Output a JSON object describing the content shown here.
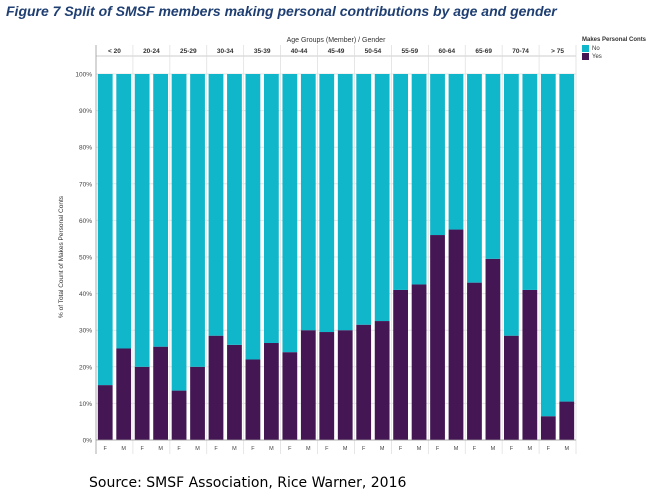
{
  "title": "Figure 7 Split of SMSF members making personal contributions by age and gender",
  "source": "Source: SMSF Association, Rice Warner, 2016",
  "colors": {
    "no": "#10b6c9",
    "yes": "#441654"
  },
  "chart_data": {
    "type": "bar",
    "stacked": true,
    "percent": true,
    "header_label": "Age Groups (Member)  /  Gender",
    "ylabel": "% of Total Count of Makes Personal Conts",
    "yticks": [
      "0%",
      "10%",
      "20%",
      "30%",
      "40%",
      "50%",
      "60%",
      "70%",
      "80%",
      "90%",
      "100%"
    ],
    "ylim": [
      0,
      100
    ],
    "legend": {
      "title": "Makes Personal Conts",
      "items": [
        "No",
        "Yes"
      ],
      "position": "top-right"
    },
    "groups": [
      "< 20",
      "20-24",
      "25-29",
      "30-34",
      "35-39",
      "40-44",
      "45-49",
      "50-54",
      "55-59",
      "60-64",
      "65-69",
      "70-74",
      "> 75"
    ],
    "genders": [
      "F",
      "M"
    ],
    "series": [
      {
        "name": "Yes",
        "values": [
          15,
          25,
          20,
          25.5,
          13.5,
          20,
          28.5,
          26,
          22,
          26.5,
          24,
          30,
          29.5,
          30,
          31.5,
          32.5,
          41,
          42.5,
          56,
          57.5,
          43,
          49.5,
          28.5,
          41,
          6.5,
          10.5
        ]
      },
      {
        "name": "No",
        "values": [
          85,
          75,
          80,
          74.5,
          86.5,
          80,
          71.5,
          74,
          78,
          73.5,
          76,
          70,
          70.5,
          70,
          68.5,
          67.5,
          59,
          57.5,
          44,
          42.5,
          57,
          50.5,
          71.5,
          59,
          93.5,
          89.5
        ]
      }
    ]
  }
}
